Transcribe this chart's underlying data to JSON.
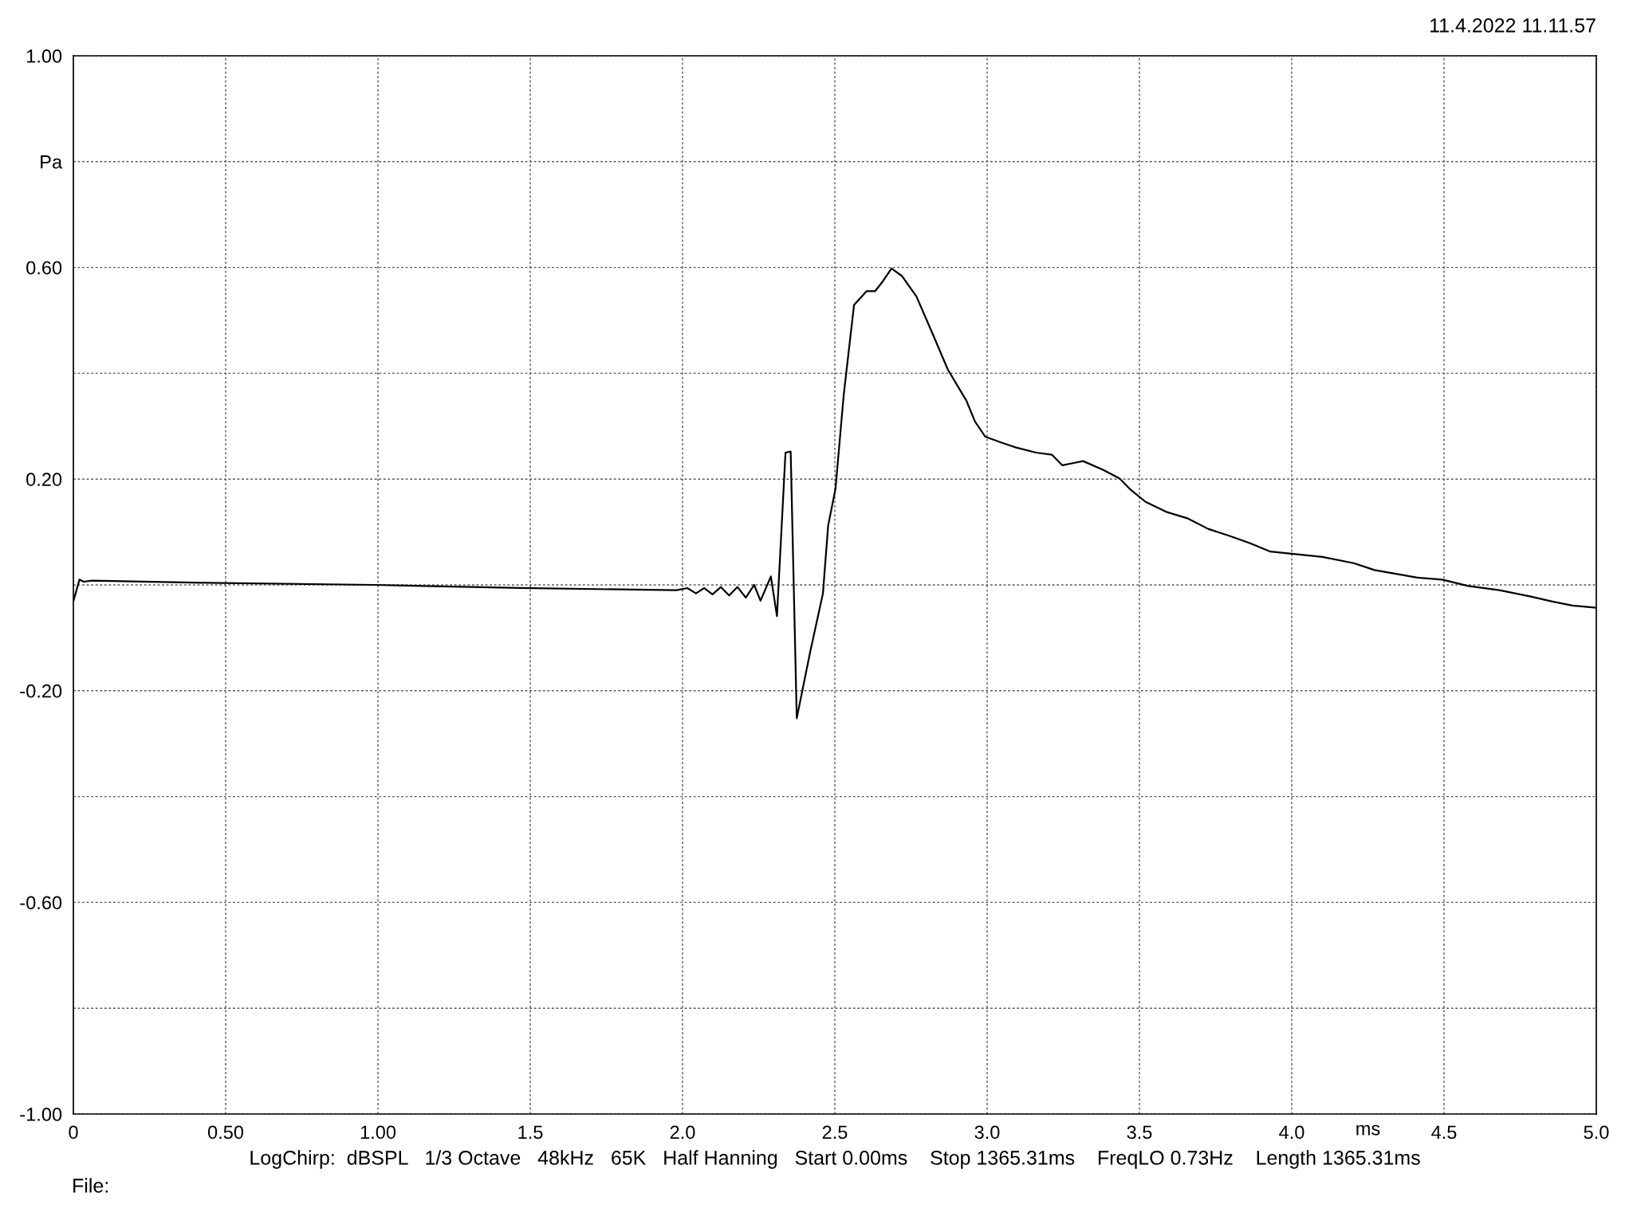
{
  "chart_data": {
    "type": "line",
    "xlabel": "ms",
    "annotations": [
      "11.4.2022 11.11.57",
      "LogChirp:  dBSPL   1/3 Octave   48kHz   65K   Half Hanning   Start 0.00ms    Stop 1365.31ms    FreqLO 0.73Hz    Length 1365.31ms",
      "File:"
    ],
    "xlim": [
      0,
      5
    ],
    "ylim": [
      -1,
      1
    ],
    "xticks": [
      0,
      {
        "value": 0.5,
        "label": "0.50"
      },
      {
        "value": 1,
        "label": "1.00"
      },
      1.5,
      {
        "value": 2,
        "label": "2.0"
      },
      2.5,
      {
        "value": 3,
        "label": "3.0"
      },
      3.5,
      {
        "value": 4,
        "label": "4.0"
      },
      4.5,
      {
        "value": 5,
        "label": "5.0"
      }
    ],
    "yticks": [
      {
        "value": -1,
        "label": "-1.00"
      },
      {
        "value": -0.8,
        "label": null
      },
      {
        "value": -0.6,
        "label": "-0.60"
      },
      {
        "value": -0.4,
        "label": null
      },
      {
        "value": -0.2,
        "label": "-0.20"
      },
      {
        "value": 0,
        "label": null
      },
      {
        "value": 0.2,
        "label": "0.20"
      },
      {
        "value": 0.4,
        "label": null
      },
      {
        "value": 0.6,
        "label": "0.60"
      },
      {
        "value": 0.8,
        "label": "Pa"
      },
      {
        "value": 1,
        "label": "1.00"
      }
    ],
    "grid": true,
    "line_style": "solid",
    "series": [
      {
        "color": "#000000",
        "x": [
          0,
          0.02,
          0.034,
          0.06,
          0.44,
          0.99,
          1.47,
          1.98,
          2.016,
          2.044,
          2.071,
          2.098,
          2.126,
          2.153,
          2.18,
          2.208,
          2.235,
          2.256,
          2.29,
          2.31,
          2.338,
          2.355,
          2.375,
          2.42,
          2.461,
          2.478,
          2.502,
          2.529,
          2.563,
          2.604,
          2.632,
          2.659,
          2.686,
          2.72,
          2.768,
          2.82,
          2.871,
          2.932,
          2.96,
          2.994,
          3.042,
          3.093,
          3.161,
          3.213,
          3.247,
          3.281,
          3.315,
          3.383,
          3.435,
          3.469,
          3.52,
          3.588,
          3.657,
          3.725,
          3.794,
          3.862,
          3.93,
          3.999,
          4.101,
          4.204,
          4.272,
          4.409,
          4.494,
          4.58,
          4.682,
          4.785,
          4.853,
          4.921,
          5.0
        ],
        "values": [
          -0.031,
          0.01,
          0.006,
          0.008,
          0.004,
          0.0,
          -0.006,
          -0.01,
          -0.006,
          -0.016,
          -0.006,
          -0.018,
          -0.004,
          -0.02,
          -0.004,
          -0.024,
          0.0,
          -0.03,
          0.016,
          -0.059,
          0.25,
          0.252,
          -0.252,
          -0.124,
          -0.016,
          0.112,
          0.181,
          0.358,
          0.529,
          0.555,
          0.555,
          0.575,
          0.598,
          0.584,
          0.545,
          0.476,
          0.407,
          0.348,
          0.309,
          0.28,
          0.27,
          0.26,
          0.25,
          0.246,
          0.226,
          0.23,
          0.234,
          0.217,
          0.201,
          0.181,
          0.157,
          0.138,
          0.126,
          0.106,
          0.093,
          0.079,
          0.063,
          0.059,
          0.053,
          0.041,
          0.028,
          0.014,
          0.01,
          -0.002,
          -0.01,
          -0.022,
          -0.031,
          -0.039,
          -0.043
        ]
      }
    ]
  }
}
